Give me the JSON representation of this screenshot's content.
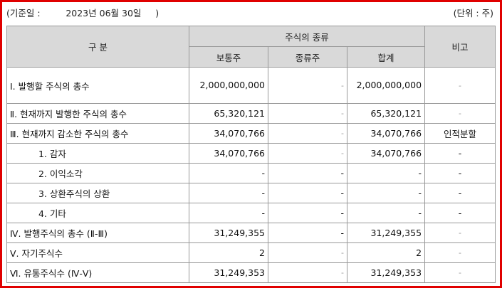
{
  "header": {
    "base_date_label": "(기준일 :",
    "base_date_value": "2023년 06월 30일",
    "base_date_close": ")",
    "unit_label": "(단위 : 주)"
  },
  "columns": {
    "category": "구 분",
    "stock_types": "주식의 종류",
    "common": "보통주",
    "preferred": "종류주",
    "total": "합계",
    "remarks": "비고"
  },
  "rows": [
    {
      "label": "Ⅰ. 발행할 주식의 총수",
      "common": "2,000,000,000",
      "preferred": "-",
      "total": "2,000,000,000",
      "remarks": "-"
    },
    {
      "label": "Ⅱ. 현재까지 발행한 주식의 총수",
      "common": "65,320,121",
      "preferred": "-",
      "total": "65,320,121",
      "remarks": "-"
    },
    {
      "label": "Ⅲ. 현재까지 감소한 주식의 총수",
      "common": "34,070,766",
      "preferred": "-",
      "total": "34,070,766",
      "remarks": "인적분할"
    },
    {
      "label": "1. 감자",
      "common": "34,070,766",
      "preferred": "-",
      "total": "34,070,766",
      "remarks": "-"
    },
    {
      "label": "2. 이익소각",
      "common": "-",
      "preferred": "-",
      "total": "-",
      "remarks": "-"
    },
    {
      "label": "3. 상환주식의 상환",
      "common": "-",
      "preferred": "-",
      "total": "-",
      "remarks": "-"
    },
    {
      "label": "4. 기타",
      "common": "-",
      "preferred": "-",
      "total": "-",
      "remarks": "-"
    },
    {
      "label": "Ⅳ. 발행주식의 총수 (Ⅱ-Ⅲ)",
      "common": "31,249,355",
      "preferred": "-",
      "total": "31,249,355",
      "remarks": "-"
    },
    {
      "label": "Ⅴ. 자기주식수",
      "common": "2",
      "preferred": "-",
      "total": "2",
      "remarks": "-"
    },
    {
      "label": "Ⅵ. 유통주식수 (Ⅳ-Ⅴ)",
      "common": "31,249,353",
      "preferred": "-",
      "total": "31,249,353",
      "remarks": "-"
    }
  ]
}
